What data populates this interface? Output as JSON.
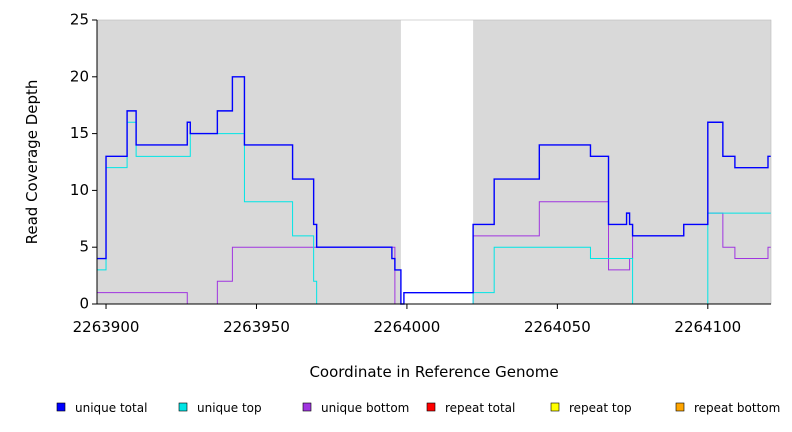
{
  "chart_data": {
    "type": "line",
    "title": "",
    "xlabel": "Coordinate in Reference Genome",
    "ylabel": "Read Coverage Depth",
    "xlim": [
      2263897,
      2264121
    ],
    "ylim": [
      0,
      25
    ],
    "xticks": [
      2263900,
      2263950,
      2264000,
      2264050,
      2264100
    ],
    "yticks": [
      0,
      5,
      10,
      15,
      20,
      25
    ],
    "grid": false,
    "legend_position": "bottom",
    "background_color": "#d9d9d9",
    "shaded_regions": [
      [
        2263897,
        2263998
      ],
      [
        2264022,
        2264121
      ]
    ],
    "series": [
      {
        "name": "unique total",
        "color": "#0000ff",
        "step": [
          [
            2263897,
            4
          ],
          [
            2263900,
            13
          ],
          [
            2263907,
            17
          ],
          [
            2263910,
            14
          ],
          [
            2263927,
            16
          ],
          [
            2263928,
            15
          ],
          [
            2263937,
            17
          ],
          [
            2263942,
            20
          ],
          [
            2263946,
            14
          ],
          [
            2263962,
            11
          ],
          [
            2263969,
            7
          ],
          [
            2263970,
            5
          ],
          [
            2263995,
            4
          ],
          [
            2263996,
            3
          ],
          [
            2263998,
            0
          ],
          [
            2263999,
            1
          ],
          [
            2264022,
            7
          ],
          [
            2264029,
            11
          ],
          [
            2264044,
            14
          ],
          [
            2264061,
            13
          ],
          [
            2264067,
            7
          ],
          [
            2264073,
            8
          ],
          [
            2264074,
            7
          ],
          [
            2264075,
            6
          ],
          [
            2264092,
            7
          ],
          [
            2264100,
            16
          ],
          [
            2264105,
            13
          ],
          [
            2264109,
            12
          ],
          [
            2264120,
            13
          ],
          [
            2264121,
            13
          ]
        ]
      },
      {
        "name": "unique top",
        "color": "#00e5e5",
        "step": [
          [
            2263897,
            3
          ],
          [
            2263900,
            12
          ],
          [
            2263907,
            16
          ],
          [
            2263910,
            13
          ],
          [
            2263928,
            15
          ],
          [
            2263946,
            9
          ],
          [
            2263962,
            6
          ],
          [
            2263969,
            2
          ],
          [
            2263970,
            0
          ],
          [
            2264022,
            1
          ],
          [
            2264029,
            5
          ],
          [
            2264061,
            4
          ],
          [
            2264073,
            4
          ],
          [
            2264075,
            0
          ],
          [
            2264100,
            8
          ],
          [
            2264121,
            8
          ]
        ]
      },
      {
        "name": "unique bottom",
        "color": "#a035e0",
        "step": [
          [
            2263897,
            1
          ],
          [
            2263927,
            0
          ],
          [
            2263937,
            2
          ],
          [
            2263942,
            5
          ],
          [
            2263996,
            0
          ],
          [
            2264022,
            6
          ],
          [
            2264044,
            9
          ],
          [
            2264067,
            3
          ],
          [
            2264074,
            4
          ],
          [
            2264075,
            6
          ],
          [
            2264092,
            7
          ],
          [
            2264100,
            8
          ],
          [
            2264105,
            5
          ],
          [
            2264109,
            4
          ],
          [
            2264120,
            5
          ],
          [
            2264121,
            5
          ]
        ]
      },
      {
        "name": "repeat total",
        "color": "#ff0000",
        "step": [
          [
            2263897,
            0
          ],
          [
            2264121,
            0
          ]
        ]
      },
      {
        "name": "repeat top",
        "color": "#ffff00",
        "step": [
          [
            2263897,
            0
          ],
          [
            2264121,
            0
          ]
        ]
      },
      {
        "name": "repeat bottom",
        "color": "#ffa500",
        "step": [
          [
            2263897,
            0
          ],
          [
            2264121,
            0
          ]
        ]
      }
    ]
  }
}
